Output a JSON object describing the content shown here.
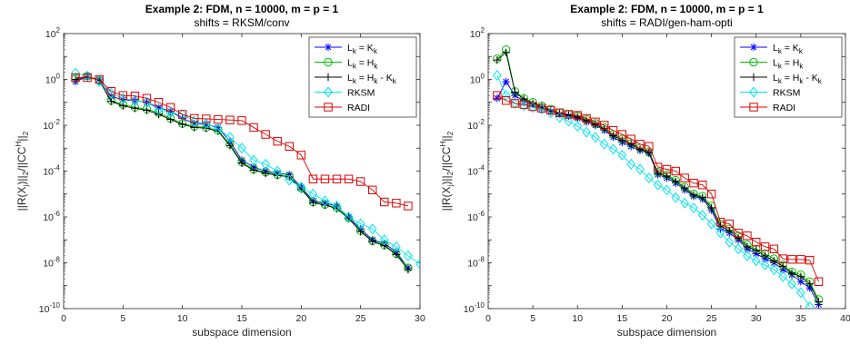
{
  "chart_data": [
    {
      "type": "line",
      "title": "Example 2: FDM, n = 10000, m = p = 1",
      "subtitle": "shifts = RKSM/conv",
      "xlabel": "subspace dimension",
      "ylabel_main": "||R(X",
      "ylabel_parts": [
        "||R(X",
        "j",
        ")||",
        "2",
        "/||CC",
        "H",
        "||",
        "2"
      ],
      "xlim": [
        0,
        30
      ],
      "ylim": [
        1e-10,
        100
      ],
      "yscale": "log",
      "xticks": [
        0,
        5,
        10,
        15,
        20,
        25,
        30
      ],
      "xtick_labels": [
        "0",
        "5",
        "10",
        "15",
        "20",
        "25",
        "30"
      ],
      "yticks": [
        -10,
        -8,
        -6,
        -4,
        -2,
        0,
        2
      ],
      "ytick_base": "10",
      "ytick_exps": [
        "-10",
        "-8",
        "-6",
        "-4",
        "-2",
        "0",
        "2"
      ],
      "legend_position": "top-right",
      "series": [
        {
          "name": "L_k = K_k",
          "name_parts": [
            "L",
            "k",
            " = K",
            "k"
          ],
          "color": "#0000ff",
          "marker": "asterisk",
          "x": [
            1,
            2,
            3,
            4,
            5,
            6,
            7,
            8,
            9,
            10,
            11,
            12,
            13,
            14,
            15,
            16,
            17,
            18,
            19,
            20,
            21,
            22,
            23,
            24,
            25,
            26,
            27,
            28,
            29
          ],
          "y": [
            0.8,
            1.3,
            1.0,
            0.18,
            0.13,
            0.12,
            0.1,
            0.06,
            0.04,
            0.02,
            0.012,
            0.011,
            0.008,
            0.002,
            0.0003,
            0.00015,
            0.0001,
            8e-05,
            7e-05,
            2e-05,
            5e-06,
            4e-06,
            3e-06,
            1e-06,
            3e-07,
            1e-07,
            7e-08,
            3e-08,
            6e-09
          ]
        },
        {
          "name": "L_k = H_k",
          "name_parts": [
            "L",
            "k",
            " = H",
            "k"
          ],
          "color": "#00c000",
          "marker": "circle",
          "x": [
            1,
            2,
            3,
            4,
            5,
            6,
            7,
            8,
            9,
            10,
            11,
            12,
            13,
            14,
            15,
            16,
            17,
            18,
            19,
            20,
            21,
            22,
            23,
            24,
            25,
            26,
            27,
            28,
            29
          ],
          "y": [
            1.1,
            1.4,
            0.9,
            0.12,
            0.08,
            0.06,
            0.05,
            0.035,
            0.02,
            0.012,
            0.009,
            0.008,
            0.006,
            0.0015,
            0.00025,
            0.00012,
            9e-05,
            7e-05,
            6e-05,
            1.8e-05,
            4.5e-06,
            3.5e-06,
            2.5e-06,
            9e-07,
            2.5e-07,
            9e-08,
            6e-08,
            2.5e-08,
            6e-09
          ]
        },
        {
          "name": "L_k = H_k - K_k",
          "name_parts": [
            "L",
            "k",
            " = H",
            "k",
            " - K",
            "k"
          ],
          "color": "#000000",
          "marker": "plus",
          "x": [
            1,
            2,
            3,
            4,
            5,
            6,
            7,
            8,
            9,
            10,
            11,
            12,
            13,
            14,
            15,
            16,
            17,
            18,
            19,
            20,
            21,
            22,
            23,
            24,
            25,
            26,
            27,
            28,
            29
          ],
          "y": [
            1.0,
            1.3,
            0.9,
            0.11,
            0.07,
            0.055,
            0.045,
            0.03,
            0.018,
            0.011,
            0.008,
            0.0075,
            0.0055,
            0.0013,
            0.00022,
            0.00011,
            8e-05,
            6.5e-05,
            5.5e-05,
            1.6e-05,
            4.2e-06,
            3.3e-06,
            2.3e-06,
            8.5e-07,
            2.3e-07,
            8.5e-08,
            5.5e-08,
            2.3e-08,
            5e-09
          ]
        },
        {
          "name": "RKSM",
          "name_parts": [
            "RKSM"
          ],
          "color": "#00e5ee",
          "marker": "diamond",
          "x": [
            1,
            2,
            3,
            4,
            5,
            6,
            7,
            8,
            9,
            10,
            11,
            12,
            13,
            14,
            15,
            16,
            17,
            18,
            19,
            20,
            21,
            22,
            23,
            24,
            25,
            26,
            27,
            28,
            29,
            30
          ],
          "y": [
            1.9,
            1.4,
            0.8,
            0.25,
            0.15,
            0.12,
            0.1,
            0.05,
            0.035,
            0.03,
            0.015,
            0.012,
            0.007,
            0.003,
            0.001,
            0.0003,
            0.0002,
            0.0001,
            4e-05,
            2e-05,
            1e-05,
            5e-06,
            3e-06,
            1e-06,
            5e-07,
            3e-07,
            1e-07,
            5e-08,
            2e-08,
            9e-09
          ]
        },
        {
          "name": "RADI",
          "name_parts": [
            "RADI"
          ],
          "color": "#dd0000",
          "marker": "square",
          "x": [
            1,
            2,
            3,
            4,
            5,
            6,
            7,
            8,
            9,
            10,
            11,
            12,
            13,
            14,
            15,
            16,
            17,
            18,
            19,
            20,
            21,
            22,
            23,
            24,
            25,
            26,
            27,
            28,
            29
          ],
          "y": [
            1.2,
            1.2,
            1.0,
            0.3,
            0.2,
            0.19,
            0.15,
            0.1,
            0.06,
            0.03,
            0.02,
            0.019,
            0.018,
            0.017,
            0.016,
            0.008,
            0.004,
            0.002,
            0.0012,
            0.0005,
            4.5e-05,
            4.5e-05,
            4.5e-05,
            4.5e-05,
            3.5e-05,
            1.5e-05,
            4.5e-06,
            4e-06,
            3e-06
          ]
        }
      ]
    },
    {
      "type": "line",
      "title": "Example 2: FDM, n = 10000, m = p = 1",
      "subtitle": "shifts = RADI/gen-ham-opti",
      "xlabel": "subspace dimension",
      "ylabel_main": "||R(X",
      "ylabel_parts": [
        "||R(X",
        "j",
        ")||",
        "2",
        "/||CC",
        "H",
        "||",
        "2"
      ],
      "xlim": [
        0,
        40
      ],
      "ylim": [
        1e-10,
        100
      ],
      "yscale": "log",
      "xticks": [
        0,
        5,
        10,
        15,
        20,
        25,
        30,
        35,
        40
      ],
      "xtick_labels": [
        "0",
        "5",
        "10",
        "15",
        "20",
        "25",
        "30",
        "35",
        "40"
      ],
      "yticks": [
        -10,
        -8,
        -6,
        -4,
        -2,
        0,
        2
      ],
      "ytick_base": "10",
      "ytick_exps": [
        "-10",
        "-8",
        "-6",
        "-4",
        "-2",
        "0",
        "2"
      ],
      "legend_position": "top-right",
      "series": [
        {
          "name": "L_k = K_k",
          "name_parts": [
            "L",
            "k",
            " = K",
            "k"
          ],
          "color": "#0000ff",
          "marker": "asterisk",
          "x": [
            1,
            2,
            3,
            4,
            5,
            6,
            7,
            8,
            9,
            10,
            11,
            12,
            13,
            14,
            15,
            16,
            17,
            18,
            19,
            20,
            21,
            22,
            23,
            24,
            25,
            26,
            27,
            28,
            29,
            30,
            31,
            32,
            33,
            34,
            35,
            36,
            37
          ],
          "y": [
            0.15,
            0.8,
            0.2,
            0.11,
            0.08,
            0.055,
            0.04,
            0.03,
            0.025,
            0.02,
            0.014,
            0.01,
            0.006,
            0.003,
            0.0018,
            0.0012,
            0.0008,
            0.0006,
            7e-05,
            5e-05,
            3e-05,
            1.5e-05,
            8e-06,
            6e-06,
            2e-06,
            3e-07,
            2e-07,
            1e-07,
            4e-08,
            2.5e-08,
            1.5e-08,
            1e-08,
            5e-09,
            3e-09,
            1.5e-09,
            8e-10,
            1.5e-10
          ]
        },
        {
          "name": "L_k = H_k",
          "name_parts": [
            "L",
            "k",
            " = H",
            "k"
          ],
          "color": "#00c000",
          "marker": "circle",
          "x": [
            1,
            2,
            3,
            4,
            5,
            6,
            7,
            8,
            9,
            10,
            11,
            12,
            13,
            14,
            15,
            16,
            17,
            18,
            19,
            20,
            21,
            22,
            23,
            24,
            25,
            26,
            27,
            28,
            29,
            30,
            31,
            32,
            33,
            34,
            35,
            36,
            37
          ],
          "y": [
            8,
            20,
            0.3,
            0.15,
            0.1,
            0.07,
            0.05,
            0.035,
            0.03,
            0.025,
            0.018,
            0.012,
            0.008,
            0.004,
            0.0025,
            0.0016,
            0.001,
            0.0007,
            9e-05,
            7e-05,
            4e-05,
            2e-05,
            1e-05,
            8e-06,
            3e-06,
            5e-07,
            3e-07,
            1.5e-07,
            6e-08,
            4e-08,
            2.5e-08,
            1.5e-08,
            8e-09,
            4e-09,
            3e-09,
            1.5e-09,
            2.5e-10
          ]
        },
        {
          "name": "L_k = H_k - K_k",
          "name_parts": [
            "L",
            "k",
            " = H",
            "k",
            " - K",
            "k"
          ],
          "color": "#000000",
          "marker": "plus",
          "x": [
            1,
            2,
            3,
            4,
            5,
            6,
            7,
            8,
            9,
            10,
            11,
            12,
            13,
            14,
            15,
            16,
            17,
            18,
            19,
            20,
            21,
            22,
            23,
            24,
            25,
            26,
            27,
            28,
            29,
            30,
            31,
            32,
            33,
            34,
            35,
            36,
            37
          ],
          "y": [
            7,
            15,
            0.28,
            0.14,
            0.09,
            0.065,
            0.045,
            0.033,
            0.028,
            0.023,
            0.016,
            0.011,
            0.007,
            0.0035,
            0.0022,
            0.0015,
            0.0009,
            0.00065,
            8e-05,
            6e-05,
            3.5e-05,
            1.8e-05,
            9e-06,
            7e-06,
            2.5e-06,
            4e-07,
            2.5e-07,
            1.2e-07,
            5e-08,
            3.5e-08,
            2e-08,
            1.2e-08,
            7e-09,
            3.5e-09,
            2.5e-09,
            1.2e-09,
            2e-10
          ]
        },
        {
          "name": "RKSM",
          "name_parts": [
            "RKSM"
          ],
          "color": "#00e5ee",
          "marker": "diamond",
          "x": [
            1,
            2,
            3,
            4,
            5,
            6,
            7,
            8,
            9,
            10,
            11,
            12,
            13,
            14,
            15,
            16,
            17,
            18,
            19,
            20,
            21,
            22,
            23,
            24,
            25,
            26,
            27,
            28,
            29,
            30,
            31,
            32,
            33,
            34,
            35,
            36
          ],
          "y": [
            1.5,
            0.2,
            0.09,
            0.07,
            0.06,
            0.05,
            0.035,
            0.022,
            0.015,
            0.009,
            0.005,
            0.003,
            0.0015,
            0.0009,
            0.0005,
            0.0002,
            0.00012,
            5e-05,
            2.5e-05,
            1.5e-05,
            7e-06,
            4e-06,
            2.5e-06,
            1.2e-06,
            5e-07,
            2e-07,
            8e-08,
            4e-08,
            2e-08,
            1.2e-08,
            8e-09,
            5e-09,
            2.5e-09,
            1.2e-09,
            5e-10,
            1.2e-10
          ]
        },
        {
          "name": "RADI",
          "name_parts": [
            "RADI"
          ],
          "color": "#dd0000",
          "marker": "square",
          "x": [
            1,
            2,
            3,
            4,
            5,
            6,
            7,
            8,
            9,
            10,
            11,
            12,
            13,
            14,
            15,
            16,
            17,
            18,
            19,
            20,
            21,
            22,
            23,
            24,
            25,
            26,
            27,
            28,
            29,
            30,
            31,
            32,
            33,
            34,
            35,
            36,
            37
          ],
          "y": [
            0.2,
            0.12,
            0.09,
            0.08,
            0.065,
            0.055,
            0.045,
            0.035,
            0.03,
            0.027,
            0.02,
            0.014,
            0.01,
            0.006,
            0.004,
            0.0025,
            0.0015,
            0.0012,
            0.00015,
            0.00012,
            0.0001,
            5e-05,
            3e-05,
            2.5e-05,
            1e-05,
            6e-07,
            5e-07,
            2e-07,
            1.5e-07,
            8e-08,
            5e-08,
            4e-08,
            1.5e-08,
            1.4e-08,
            1.4e-08,
            1.3e-08,
            1.5e-09
          ]
        }
      ]
    }
  ]
}
